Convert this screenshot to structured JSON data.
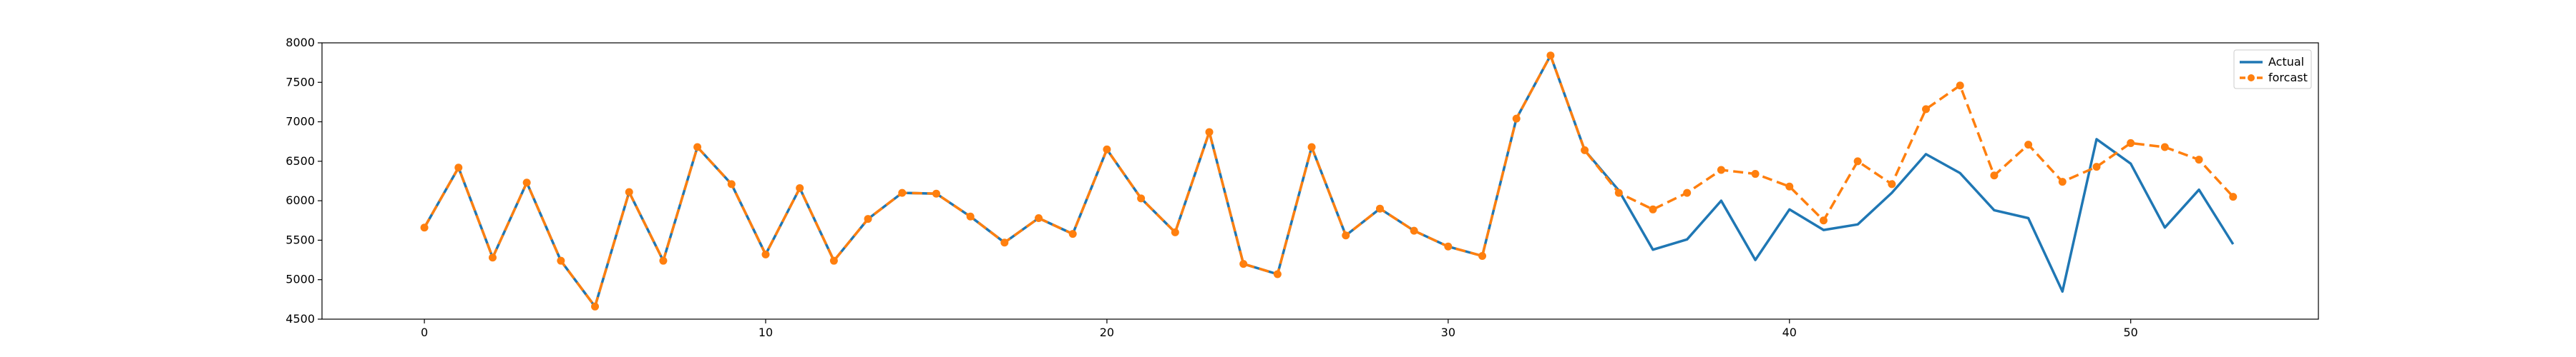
{
  "chart_data": {
    "type": "line",
    "title": "",
    "xlabel": "",
    "ylabel": "",
    "xlim": [
      -3,
      55.5
    ],
    "ylim": [
      4500,
      8000
    ],
    "xticks": [
      0,
      10,
      20,
      30,
      40,
      50
    ],
    "yticks": [
      4500,
      5000,
      5500,
      6000,
      6500,
      7000,
      7500,
      8000
    ],
    "grid": false,
    "legend": "top-right",
    "x": [
      0,
      1,
      2,
      3,
      4,
      5,
      6,
      7,
      8,
      9,
      10,
      11,
      12,
      13,
      14,
      15,
      16,
      17,
      18,
      19,
      20,
      21,
      22,
      23,
      24,
      25,
      26,
      27,
      28,
      29,
      30,
      31,
      32,
      33,
      34,
      35,
      36,
      37,
      38,
      39,
      40,
      41,
      42,
      43,
      44,
      45,
      46,
      47,
      48,
      49,
      50,
      51,
      52,
      53
    ],
    "series": [
      {
        "name": "Actual",
        "color": "#1f77b4",
        "style": "solid",
        "values": [
          5660,
          6420,
          5280,
          6230,
          5240,
          4660,
          6110,
          5240,
          6680,
          6210,
          5320,
          6160,
          5240,
          5770,
          6100,
          6090,
          5800,
          5470,
          5780,
          5580,
          6650,
          6030,
          5600,
          6870,
          5200,
          5070,
          6680,
          5560,
          5900,
          5620,
          5420,
          5300,
          7040,
          7840,
          6640,
          6130,
          5380,
          5510,
          6000,
          5250,
          5890,
          5630,
          5700,
          6100,
          6590,
          6350,
          5880,
          5780,
          4850,
          6780,
          6470,
          5660,
          6140,
          5450
        ]
      },
      {
        "name": "forcast",
        "color": "#ff7f0e",
        "style": "dashed",
        "marker": "circle",
        "values": [
          5660,
          6420,
          5280,
          6230,
          5240,
          4660,
          6110,
          5240,
          6680,
          6210,
          5320,
          6160,
          5240,
          5770,
          6100,
          6090,
          5800,
          5470,
          5780,
          5580,
          6650,
          6030,
          5600,
          6870,
          5200,
          5070,
          6680,
          5560,
          5900,
          5620,
          5420,
          5300,
          7040,
          7840,
          6640,
          6100,
          5890,
          6100,
          6390,
          6340,
          6180,
          5750,
          6500,
          6210,
          7160,
          7460,
          6320,
          6710,
          6240,
          6430,
          6730,
          6680,
          6520,
          6050
        ]
      }
    ]
  }
}
